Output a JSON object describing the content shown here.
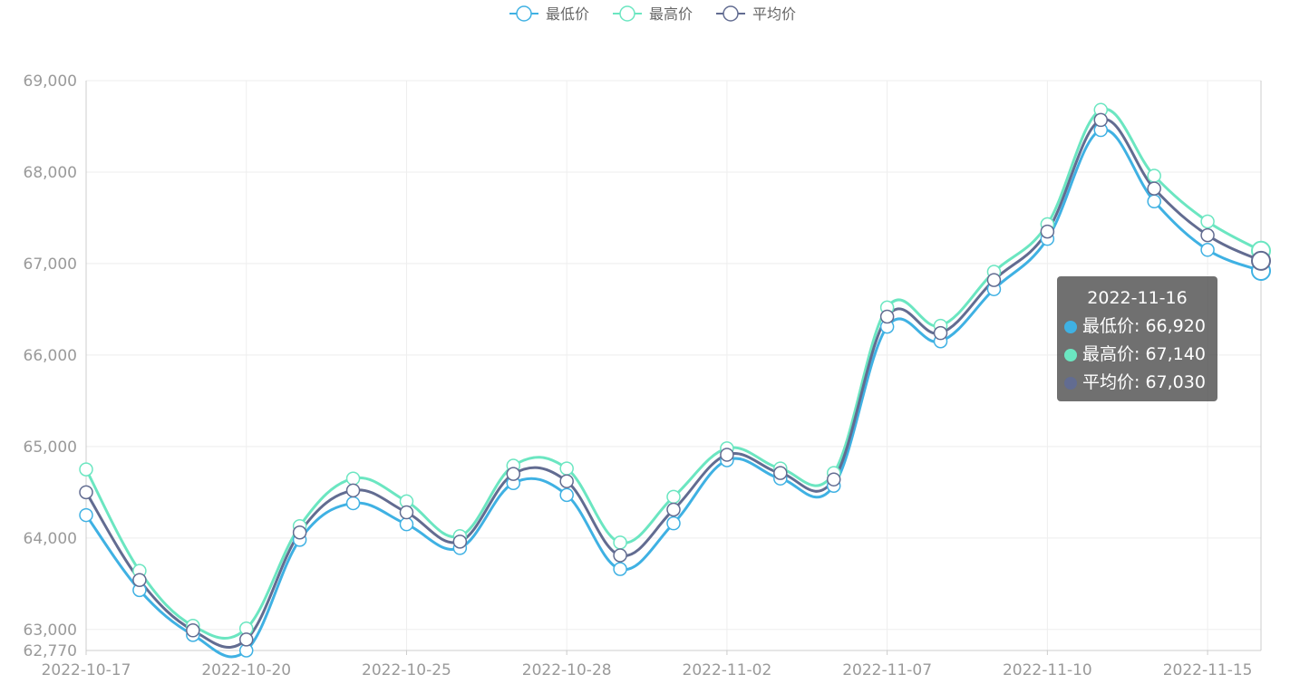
{
  "chart_data": {
    "type": "line",
    "x": [
      "2022-10-17",
      "2022-10-18",
      "2022-10-19",
      "2022-10-20",
      "2022-10-21",
      "2022-10-24",
      "2022-10-25",
      "2022-10-26",
      "2022-10-27",
      "2022-10-28",
      "2022-10-31",
      "2022-11-01",
      "2022-11-02",
      "2022-11-03",
      "2022-11-04",
      "2022-11-07",
      "2022-11-08",
      "2022-11-09",
      "2022-11-10",
      "2022-11-11",
      "2022-11-14",
      "2022-11-15",
      "2022-11-16"
    ],
    "tick_labels": [
      "2022-10-17",
      "2022-10-20",
      "2022-10-25",
      "2022-10-28",
      "2022-11-02",
      "2022-11-07",
      "2022-11-10",
      "2022-11-15"
    ],
    "tick_indices": [
      0,
      3,
      6,
      9,
      12,
      15,
      18,
      21
    ],
    "series": [
      {
        "name": "最低价",
        "color": "#3fb1e3",
        "values": [
          64250,
          63430,
          62940,
          62770,
          63980,
          64380,
          64150,
          63890,
          64600,
          64470,
          63660,
          64160,
          64850,
          64650,
          64570,
          66310,
          66150,
          66720,
          67270,
          68460,
          67680,
          67150,
          66920
        ]
      },
      {
        "name": "最高价",
        "color": "#6be6c1",
        "values": [
          64750,
          63640,
          63040,
          63010,
          64130,
          64650,
          64400,
          64020,
          64790,
          64760,
          63950,
          64450,
          64980,
          64760,
          64710,
          66520,
          66320,
          66910,
          67430,
          68680,
          67960,
          67460,
          67140
        ]
      },
      {
        "name": "平均价",
        "color": "#626c91",
        "values": [
          64500,
          63540,
          62990,
          62890,
          64060,
          64520,
          64280,
          63960,
          64700,
          64620,
          63810,
          64310,
          64910,
          64710,
          64640,
          66420,
          66240,
          66820,
          67350,
          68570,
          67820,
          67310,
          67030
        ]
      }
    ],
    "y_ticks": [
      "69,000",
      "68,000",
      "67,000",
      "66,000",
      "65,000",
      "64,000",
      "63,000",
      "62,770"
    ],
    "ylim": [
      62770,
      69000
    ],
    "grid": true,
    "legend_position": "top-center",
    "tooltip": {
      "title": "2022-11-16",
      "rows": [
        {
          "label": "最低价: 66,920",
          "color": "#3fb1e3"
        },
        {
          "label": "最高价: 67,140",
          "color": "#6be6c1"
        },
        {
          "label": "平均价: 67,030",
          "color": "#626c91"
        }
      ]
    }
  }
}
